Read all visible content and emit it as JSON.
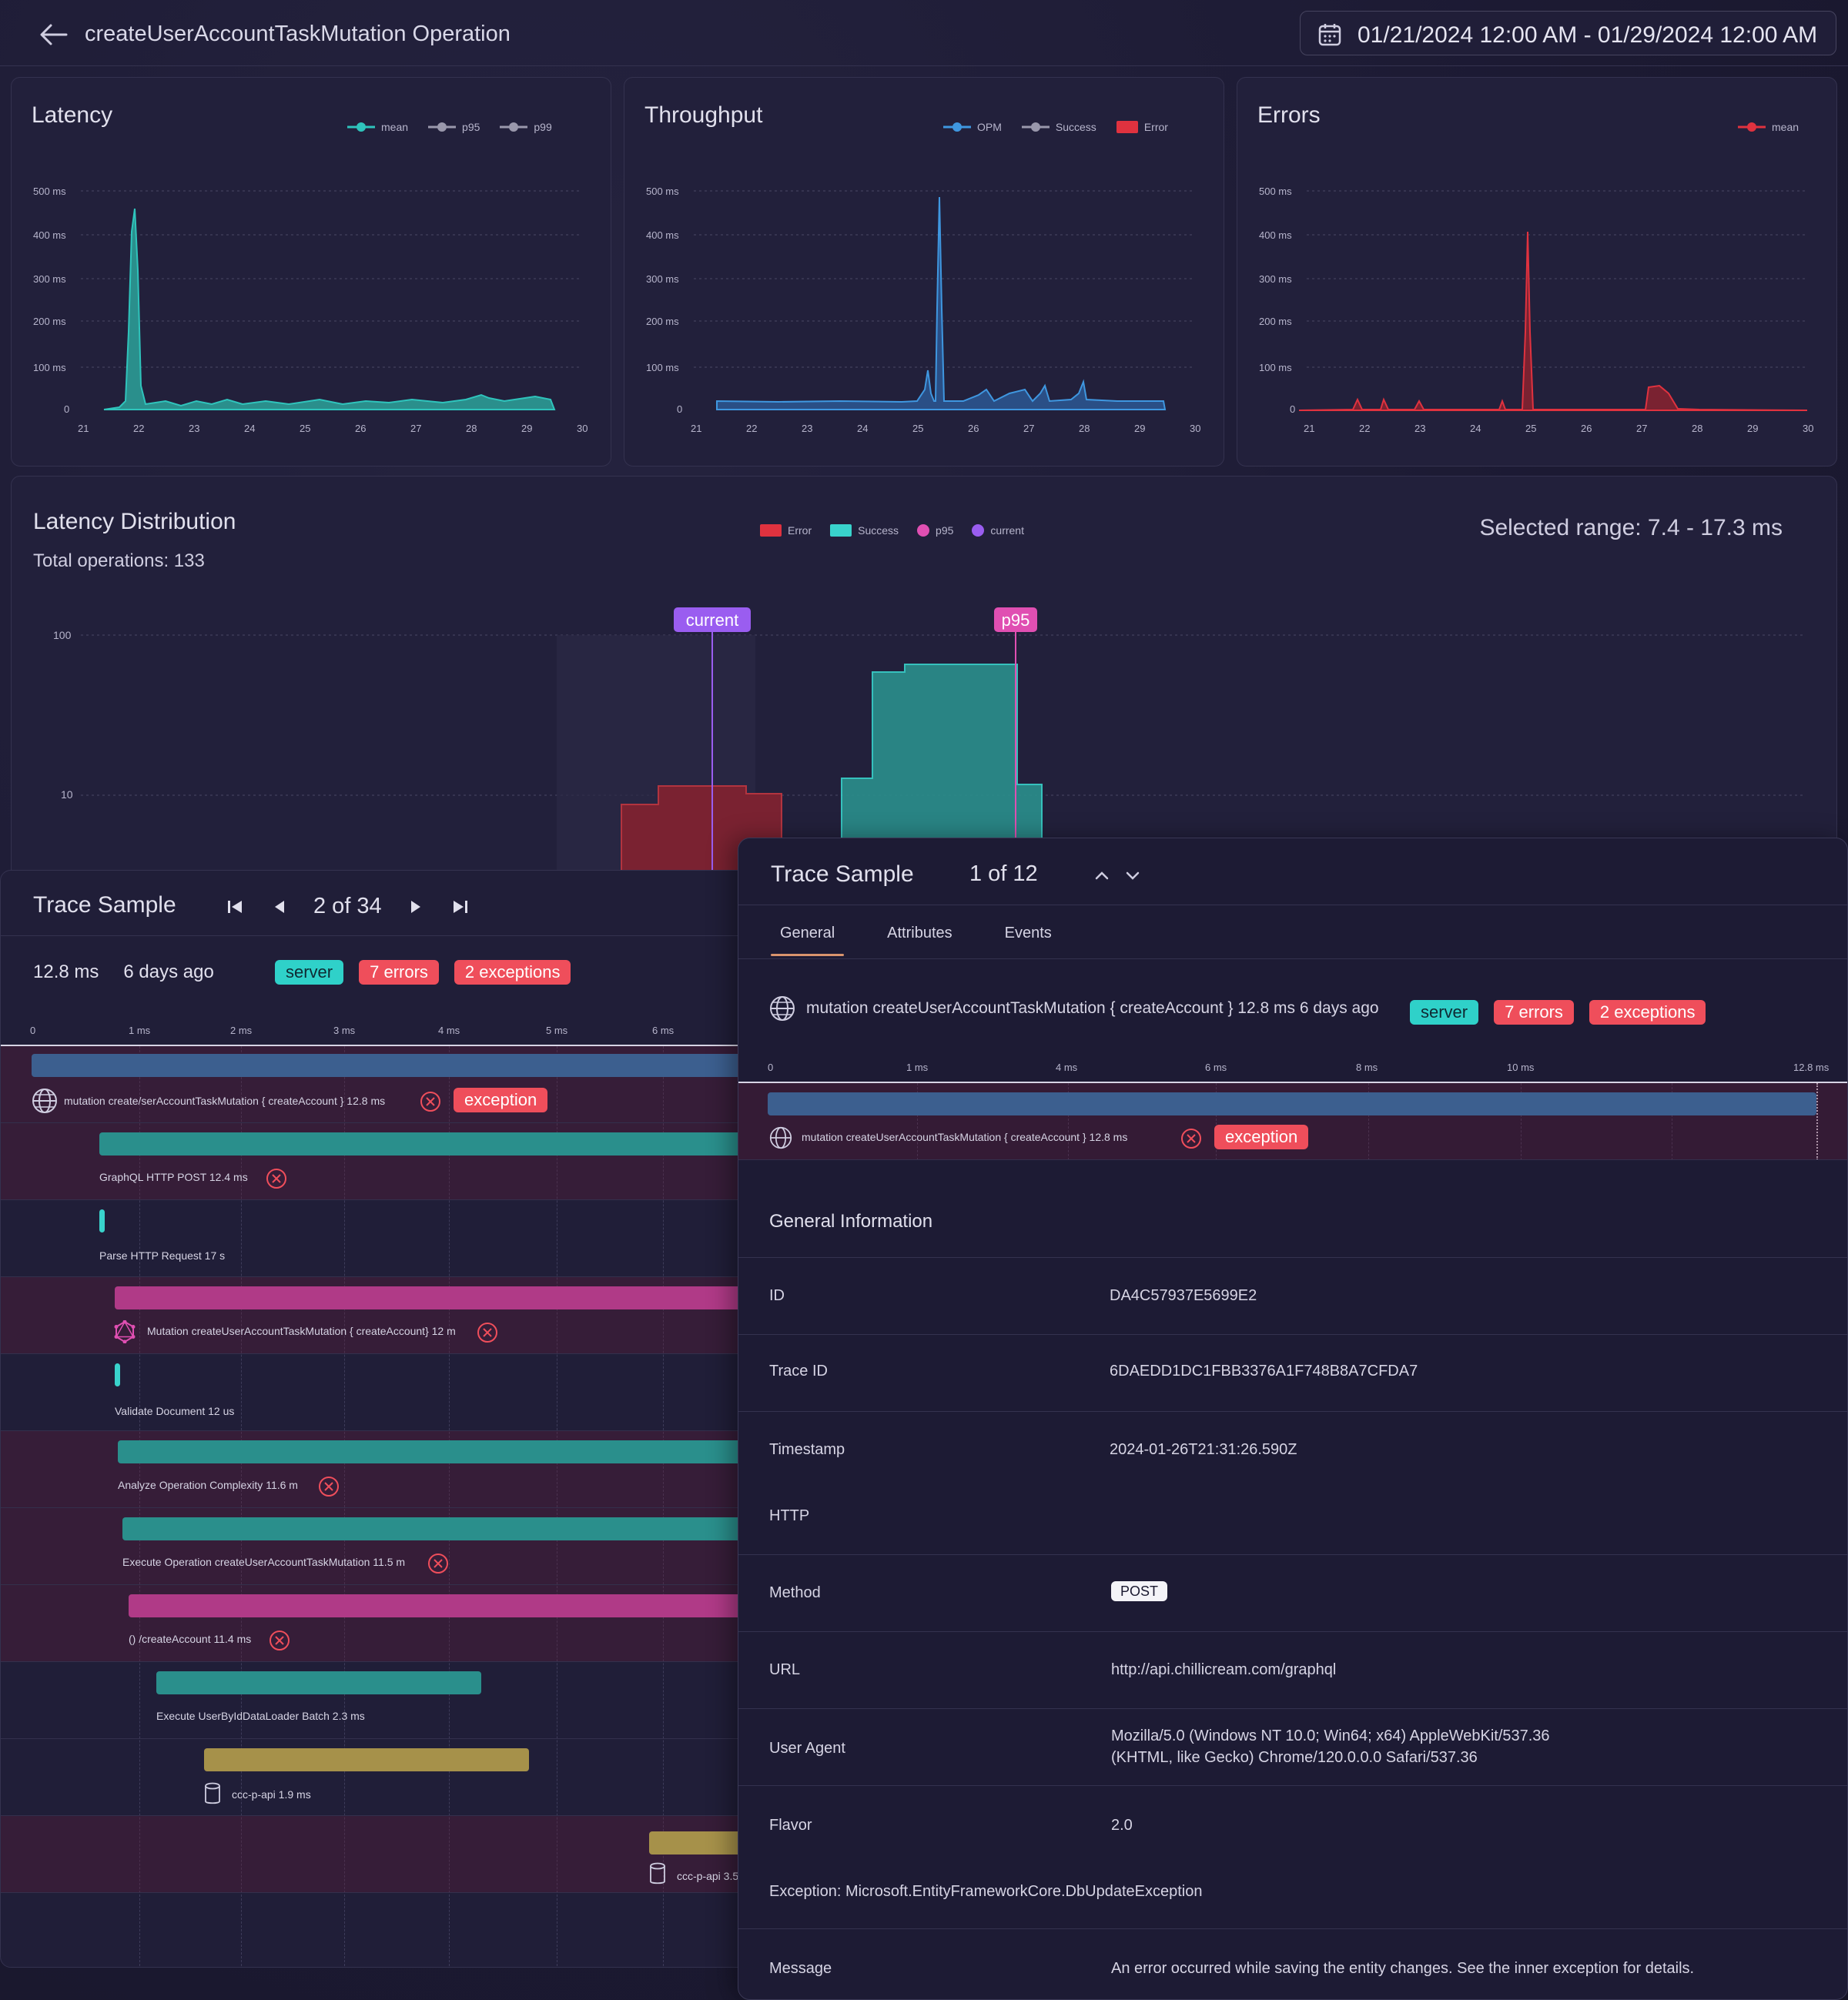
{
  "header": {
    "title": "createUserAccountTaskMutation Operation",
    "date_range": "01/21/2024 12:00 AM - 01/29/2024 12:00 AM"
  },
  "latency": {
    "title": "Latency",
    "legend": [
      "mean",
      "p95",
      "p99"
    ],
    "y_ticks": [
      "500 ms",
      "400 ms",
      "300 ms",
      "200 ms",
      "100 ms",
      "0"
    ],
    "x_ticks": [
      "21",
      "22",
      "23",
      "24",
      "25",
      "26",
      "27",
      "28",
      "29",
      "30"
    ]
  },
  "throughput": {
    "title": "Throughput",
    "legend": [
      "OPM",
      "Success",
      "Error"
    ],
    "y_ticks": [
      "500 ms",
      "400 ms",
      "300 ms",
      "200 ms",
      "100 ms",
      "0"
    ],
    "x_ticks": [
      "21",
      "22",
      "23",
      "24",
      "25",
      "26",
      "27",
      "28",
      "29",
      "30"
    ]
  },
  "errors": {
    "title": "Errors",
    "legend": [
      "mean"
    ],
    "y_ticks": [
      "500 ms",
      "400 ms",
      "300 ms",
      "200 ms",
      "100 ms",
      "0"
    ],
    "x_ticks": [
      "21",
      "22",
      "23",
      "24",
      "25",
      "26",
      "27",
      "28",
      "29",
      "30"
    ]
  },
  "distribution": {
    "title": "Latency Distribution",
    "total": "Total operations: 133",
    "selected_range": "Selected range: 7.4 - 17.3 ms",
    "legend": [
      "Error",
      "Success",
      "p95",
      "current"
    ],
    "y_ticks": [
      "100",
      "10"
    ],
    "markers": {
      "current": "current",
      "p95": "p95"
    }
  },
  "trace_left": {
    "title": "Trace Sample",
    "page": "2 of 34",
    "duration": "12.8 ms",
    "age": "6 days ago",
    "badges": {
      "server": "server",
      "errors": "7 errors",
      "exceptions": "2 exceptions"
    },
    "axis": [
      "0",
      "1 ms",
      "2 ms",
      "3 ms",
      "4 ms",
      "5 ms",
      "6 ms"
    ],
    "spans": [
      {
        "label": "mutation create/serAccountTaskMutation { createAccount } 12.8 ms",
        "exception": "exception"
      },
      {
        "label": "GraphQL HTTP POST 12.4 ms"
      },
      {
        "label": "Parse HTTP Request 17 s"
      },
      {
        "label": "Mutation createUserAccountTaskMutation { createAccount} 12 m"
      },
      {
        "label": "Validate Document 12 us"
      },
      {
        "label": "Analyze Operation Complexity 11.6 m"
      },
      {
        "label": "Execute Operation createUserAccountTaskMutation 11.5 m"
      },
      {
        "label": "() /createAccount 11.4 ms"
      },
      {
        "label": "Execute UserByIdDataLoader Batch 2.3 ms"
      },
      {
        "label": "ccc-p-api 1.9 ms"
      },
      {
        "label": "ccc-p-api 3.5"
      }
    ]
  },
  "trace_right": {
    "title": "Trace Sample",
    "count": "1 of 12",
    "tabs": [
      "General",
      "Attributes",
      "Events"
    ],
    "operation": "mutation createUserAccountTaskMutation { createAccount } 12.8 ms 6 days ago",
    "badges": {
      "server": "server",
      "errors": "7 errors",
      "exceptions": "2 exceptions"
    },
    "axis": [
      "0",
      "1 ms",
      "4 ms",
      "6 ms",
      "8 ms",
      "10 ms",
      "12.8 ms"
    ],
    "span_label": "mutation createUserAccountTaskMutation { createAccount } 12.8 ms",
    "span_exception": "exception",
    "info_heading": "General Information",
    "info": {
      "id_key": "ID",
      "id_val": "DA4C57937E5699E2",
      "trace_key": "Trace ID",
      "trace_val": "6DAEDD1DC1FBB3376A1F748B8A7CFDA7",
      "ts_key": "Timestamp",
      "ts_val": "2024-01-26T21:31:26.590Z",
      "http_key": "HTTP",
      "method_key": "Method",
      "method_val": "POST",
      "url_key": "URL",
      "url_val": "http://api.chillicream.com/graphql",
      "ua_key": "User Agent",
      "ua_val_1": "Mozilla/5.0 (Windows NT 10.0; Win64; x64) AppleWebKit/537.36",
      "ua_val_2": "(KHTML, like Gecko) Chrome/120.0.0.0 Safari/537.36",
      "flavor_key": "Flavor",
      "flavor_val": "2.0",
      "exception_heading": "Exception: Microsoft.EntityFrameworkCore.DbUpdateException",
      "message_key": "Message",
      "message_val": "An error occurred while saving the entity changes. See the inner exception for details."
    }
  },
  "colors": {
    "teal": "#2fc4bc",
    "blue": "#3f97e0",
    "red": "#e0323f",
    "magenta": "#b03a87",
    "gold": "#a6914a",
    "steel": "#3c5f8f"
  }
}
